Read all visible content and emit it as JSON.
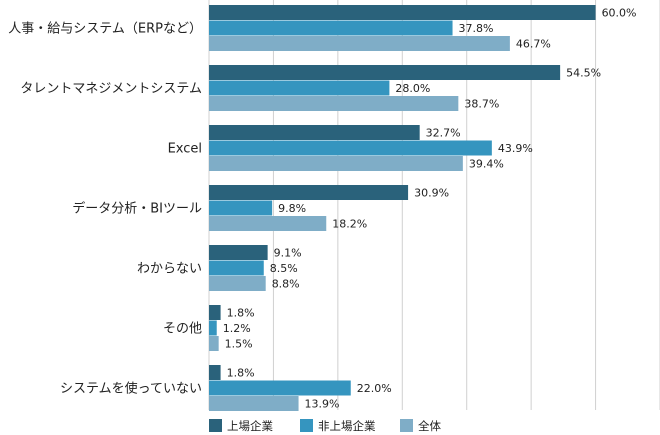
{
  "chart_data": {
    "type": "bar",
    "orientation": "horizontal",
    "categories": [
      "人事・給与システム（ERPなど）",
      "タレントマネジメントシステム",
      "Excel",
      "データ分析・BIツール",
      "わからない",
      "その他",
      "システムを使っていない"
    ],
    "series": [
      {
        "name": "上場企業",
        "color": "#2a627b",
        "values": [
          60.0,
          54.5,
          32.7,
          30.9,
          9.1,
          1.8,
          1.8
        ]
      },
      {
        "name": "非上場企業",
        "color": "#3595bf",
        "values": [
          37.8,
          28.0,
          43.9,
          9.8,
          8.5,
          1.2,
          22.0
        ]
      },
      {
        "name": "全体",
        "color": "#7fadc7",
        "values": [
          46.7,
          38.7,
          39.4,
          18.2,
          8.8,
          1.5,
          13.9
        ]
      }
    ],
    "value_suffix": "%",
    "xlim": [
      0,
      70
    ],
    "grid": true,
    "legend_position": "bottom-left",
    "title": "",
    "xlabel": "",
    "ylabel": ""
  }
}
